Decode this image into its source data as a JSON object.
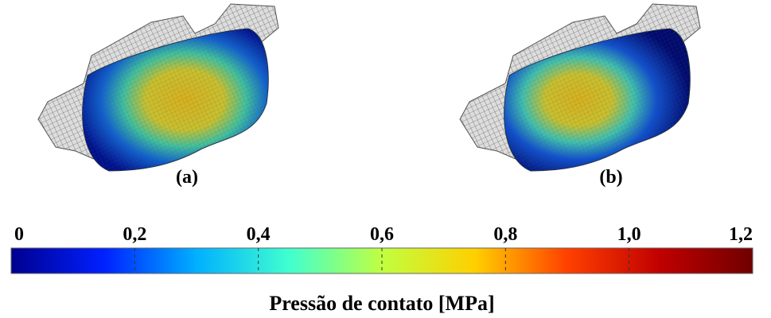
{
  "panels": [
    {
      "label": "(a)"
    },
    {
      "label": "(b)"
    }
  ],
  "colorbar": {
    "title": "Pressão de contato [MPa]",
    "lim": [
      0,
      1.2
    ],
    "ticks": [
      0,
      {
        "value": 0.2,
        "label": "0,2"
      },
      {
        "value": 0.4,
        "label": "0,4"
      },
      {
        "value": 0.6,
        "label": "0,6"
      },
      {
        "value": 0.8,
        "label": "0,8"
      },
      {
        "value": 1.0,
        "label": "1,0"
      },
      {
        "value": 1.2,
        "label": "1,2"
      }
    ],
    "colors": [
      "#00008f",
      "#0020ff",
      "#00b0ff",
      "#40ffd0",
      "#c0ff40",
      "#ffd000",
      "#ff4000",
      "#c00000",
      "#700000"
    ]
  }
}
